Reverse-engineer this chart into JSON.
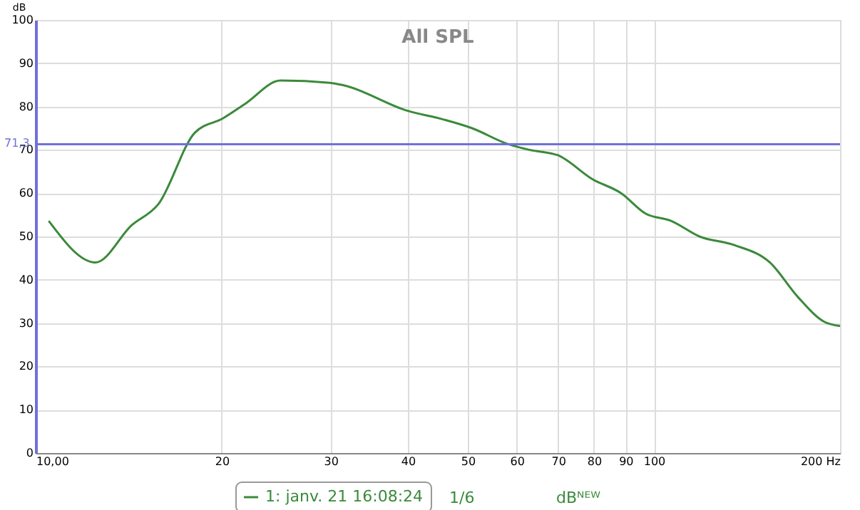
{
  "chart_data": {
    "type": "line",
    "title": "All SPL",
    "ylabel": "dB",
    "x": [
      10.5,
      12.5,
      14.3,
      15.8,
      18.1,
      20.1,
      21.8,
      24.9,
      29.9,
      31.5,
      40,
      45.7,
      50.8,
      57.9,
      62.9,
      69.8,
      79.6,
      88.5,
      96.9,
      106.6,
      118.5,
      135,
      154,
      171,
      188.6,
      200
    ],
    "series": [
      {
        "name": "1: janv. 21 16:08:24",
        "color": "#3a8a3a",
        "values": [
          53.6,
          44,
          52.6,
          57.5,
          74,
          77.3,
          80.6,
          86,
          85.5,
          84.9,
          79,
          77,
          75,
          71.4,
          70,
          68.8,
          63.2,
          60,
          55.3,
          53.6,
          50,
          48,
          44,
          36,
          30.3,
          29.3
        ]
      }
    ],
    "log": "x",
    "xlim": [
      10,
      200
    ],
    "xticks": [
      {
        "value": 10,
        "label": "10,00"
      },
      20,
      30,
      40,
      50,
      60,
      70,
      80,
      90,
      100,
      {
        "value": 200,
        "label": "200 Hz"
      }
    ],
    "ylim": [
      0,
      100
    ],
    "yticks": [
      0,
      10,
      20,
      30,
      40,
      50,
      60,
      70,
      80,
      90,
      100
    ],
    "ref_lines": [
      {
        "axis": "y",
        "value": 71.3,
        "label": "71,3",
        "color": "#7070d8"
      }
    ],
    "annotations": [
      "1/6",
      "dBᴺᴱᵂ"
    ],
    "grid": true,
    "legend": "bottom"
  }
}
